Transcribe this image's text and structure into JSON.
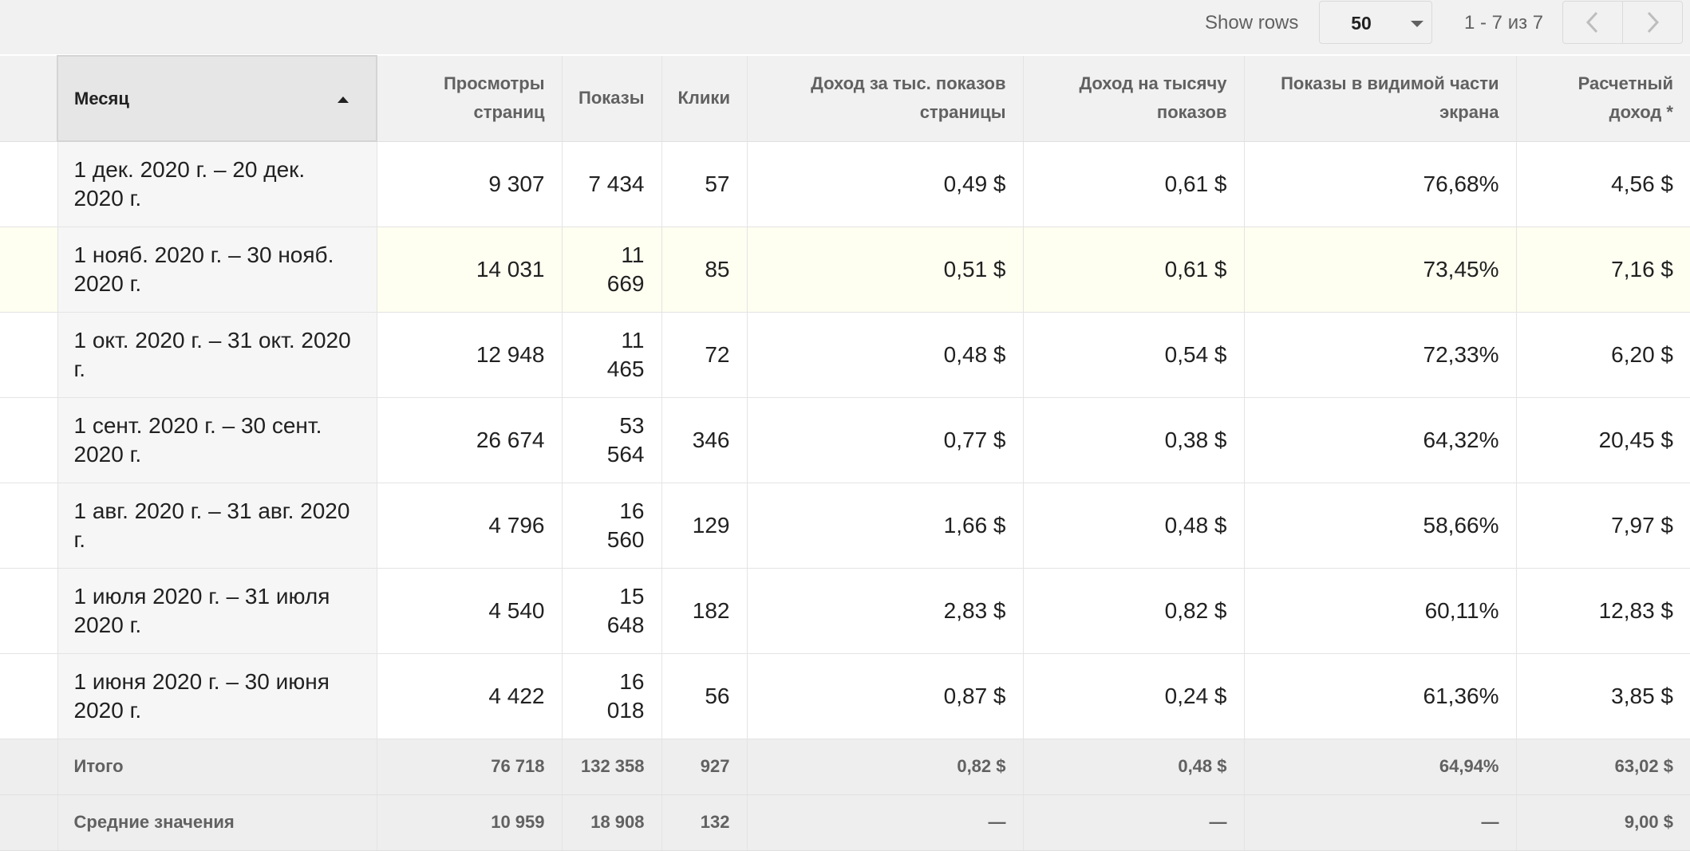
{
  "toolbar": {
    "show_rows_label": "Show rows",
    "rows_value": "50",
    "page_range": "1 - 7 из 7",
    "prev_icon": "chevron-left-icon",
    "next_icon": "chevron-right-icon"
  },
  "table": {
    "headers": {
      "month": "Месяц",
      "pageviews": "Просмотры страниц",
      "impressions": "Показы",
      "clicks": "Клики",
      "page_rpm": "Доход за тыс. показов страницы",
      "impression_rpm": "Доход на тысячу показов",
      "viewability": "Показы в видимой части экрана",
      "earnings": "Расчетный доход *"
    },
    "sort": {
      "column": "month",
      "direction": "ascending",
      "icon": "sort-up-icon"
    },
    "rows": [
      {
        "month": "1 дек. 2020 г. – 20 дек. 2020 г.",
        "pageviews": "9 307",
        "impressions": "7 434",
        "clicks": "57",
        "page_rpm": "0,49 $",
        "impression_rpm": "0,61 $",
        "viewability": "76,68%",
        "earnings": "4,56 $"
      },
      {
        "month": "1 нояб. 2020 г. – 30 нояб. 2020 г.",
        "pageviews": "14 031",
        "impressions": "11 669",
        "clicks": "85",
        "page_rpm": "0,51 $",
        "impression_rpm": "0,61 $",
        "viewability": "73,45%",
        "earnings": "7,16 $"
      },
      {
        "month": "1 окт. 2020 г. – 31 окт. 2020 г.",
        "pageviews": "12 948",
        "impressions": "11 465",
        "clicks": "72",
        "page_rpm": "0,48 $",
        "impression_rpm": "0,54 $",
        "viewability": "72,33%",
        "earnings": "6,20 $"
      },
      {
        "month": "1 сент. 2020 г. – 30 сент. 2020 г.",
        "pageviews": "26 674",
        "impressions": "53 564",
        "clicks": "346",
        "page_rpm": "0,77 $",
        "impression_rpm": "0,38 $",
        "viewability": "64,32%",
        "earnings": "20,45 $"
      },
      {
        "month": "1 авг. 2020 г. – 31 авг. 2020 г.",
        "pageviews": "4 796",
        "impressions": "16 560",
        "clicks": "129",
        "page_rpm": "1,66 $",
        "impression_rpm": "0,48 $",
        "viewability": "58,66%",
        "earnings": "7,97 $"
      },
      {
        "month": "1 июля 2020 г. – 31 июля 2020 г.",
        "pageviews": "4 540",
        "impressions": "15 648",
        "clicks": "182",
        "page_rpm": "2,83 $",
        "impression_rpm": "0,82 $",
        "viewability": "60,11%",
        "earnings": "12,83 $"
      },
      {
        "month": "1 июня 2020 г. – 30 июня 2020 г.",
        "pageviews": "4 422",
        "impressions": "16 018",
        "clicks": "56",
        "page_rpm": "0,87 $",
        "impression_rpm": "0,24 $",
        "viewability": "61,36%",
        "earnings": "3,85 $"
      }
    ],
    "total": {
      "label": "Итого",
      "pageviews": "76 718",
      "impressions": "132 358",
      "clicks": "927",
      "page_rpm": "0,82 $",
      "impression_rpm": "0,48 $",
      "viewability": "64,94%",
      "earnings": "63,02 $"
    },
    "average": {
      "label": "Средние значения",
      "pageviews": "10 959",
      "impressions": "18 908",
      "clicks": "132",
      "page_rpm": "—",
      "impression_rpm": "—",
      "viewability": "—",
      "earnings": "9,00 $"
    }
  },
  "colors": {
    "header_bg": "#f1f1f1",
    "highlight_row_bg": "#fefef1",
    "footer_bg": "#eeeeee"
  }
}
